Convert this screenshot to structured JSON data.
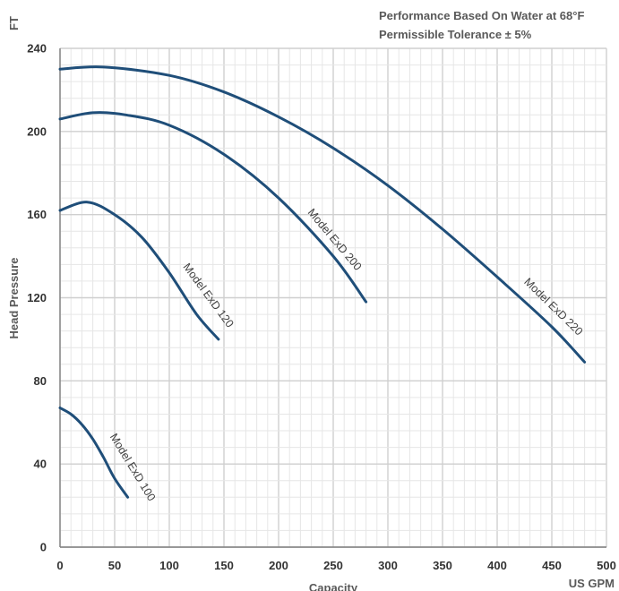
{
  "chart_data": {
    "type": "line",
    "title": "",
    "notes": [
      "Performance Based On Water at 68°F",
      "Permissible Tolerance ± 5%"
    ],
    "xlabel": "Capacity",
    "xunit": "US GPM",
    "ylabel": "Head Pressure",
    "yunit": "FT",
    "xlim": [
      0,
      500
    ],
    "ylim": [
      0,
      240
    ],
    "xticks": [
      0,
      50,
      100,
      150,
      200,
      250,
      300,
      350,
      400,
      450,
      500
    ],
    "yticks": [
      0,
      40,
      80,
      120,
      160,
      200,
      240
    ],
    "grid": true,
    "line_color": "#1f4e79",
    "series": [
      {
        "name": "Model ExD 100",
        "x": [
          0,
          10,
          20,
          30,
          40,
          50,
          62
        ],
        "y": [
          67,
          64,
          59,
          52,
          43,
          33,
          24
        ]
      },
      {
        "name": "Model ExD 120",
        "x": [
          0,
          25,
          50,
          75,
          100,
          125,
          145
        ],
        "y": [
          162,
          166,
          160,
          149,
          132,
          112,
          100
        ]
      },
      {
        "name": "Model ExD 200",
        "x": [
          0,
          30,
          60,
          100,
          150,
          200,
          250,
          280
        ],
        "y": [
          206,
          209,
          208,
          203,
          189,
          168,
          140,
          118
        ]
      },
      {
        "name": "Model ExD 220",
        "x": [
          0,
          40,
          100,
          150,
          200,
          250,
          300,
          350,
          400,
          450,
          480
        ],
        "y": [
          230,
          231,
          227,
          219,
          207,
          192,
          174,
          153,
          130,
          106,
          89
        ]
      }
    ]
  }
}
